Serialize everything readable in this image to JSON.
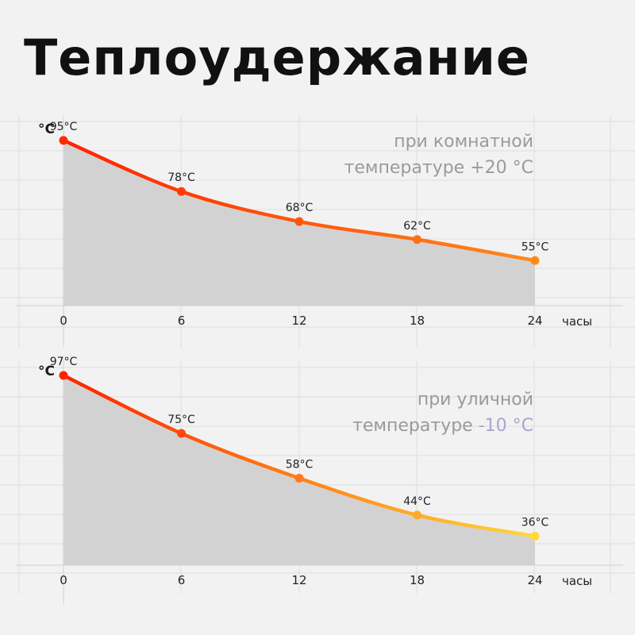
{
  "title": "Теплоудержание",
  "colors": {
    "background": "#f2f2f2",
    "fill_area": "#d2d2d2",
    "curve_hot": "#ff2200",
    "curve_mid": "#ff8a1a",
    "curve_cool": "#ffd83a",
    "note_highlight": "#a8a5cf"
  },
  "chart_data": [
    {
      "type": "area",
      "ylabel": "°C",
      "xlabel": "часы",
      "x": [
        0,
        6,
        12,
        18,
        24
      ],
      "values": [
        95,
        78,
        68,
        62,
        55
      ],
      "labels": [
        "95°C",
        "78°C",
        "68°C",
        "62°C",
        "55°C"
      ],
      "annotation": [
        "при комнатной",
        "температуре +20 °C"
      ],
      "annotation_highlight": "",
      "ylim": [
        40,
        100
      ],
      "grid": true
    },
    {
      "type": "area",
      "ylabel": "°C",
      "xlabel": "часы",
      "x": [
        0,
        6,
        12,
        18,
        24
      ],
      "values": [
        97,
        75,
        58,
        44,
        36
      ],
      "labels": [
        "97°C",
        "75°C",
        "58°C",
        "44°C",
        "36°C"
      ],
      "annotation": [
        "при уличной",
        "температуре "
      ],
      "annotation_highlight": "-10 °C",
      "ylim": [
        25,
        100
      ],
      "grid": true
    }
  ]
}
